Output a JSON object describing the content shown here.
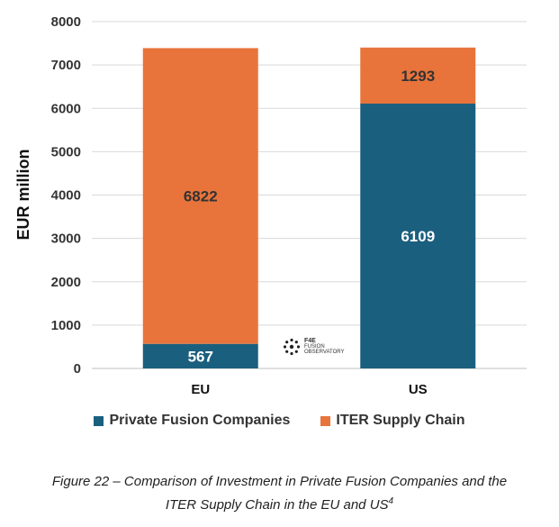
{
  "chart_data": {
    "type": "bar",
    "stacked": true,
    "title": "",
    "xlabel": "",
    "ylabel": "EUR million",
    "ylim": [
      0,
      8000
    ],
    "yticks": [
      0,
      1000,
      2000,
      3000,
      4000,
      5000,
      6000,
      7000,
      8000
    ],
    "categories": [
      "EU",
      "US"
    ],
    "series": [
      {
        "name": "Private Fusion Companies",
        "values": [
          567,
          6109
        ],
        "color": "#1b5f7f",
        "label_color": "#ffffff"
      },
      {
        "name": "ITER Supply Chain",
        "values": [
          6822,
          1293
        ],
        "color": "#e8743b",
        "label_color": "#333333"
      }
    ],
    "grid": true,
    "legend_position": "bottom"
  },
  "watermark": {
    "line1": "F4E",
    "line2": "FUSION",
    "line3": "OBSERVATORY"
  },
  "caption": {
    "text": "Figure 22 – Comparison of Investment in Private Fusion Companies and the",
    "text2": "ITER Supply Chain in the EU and US",
    "footnote": "4"
  }
}
